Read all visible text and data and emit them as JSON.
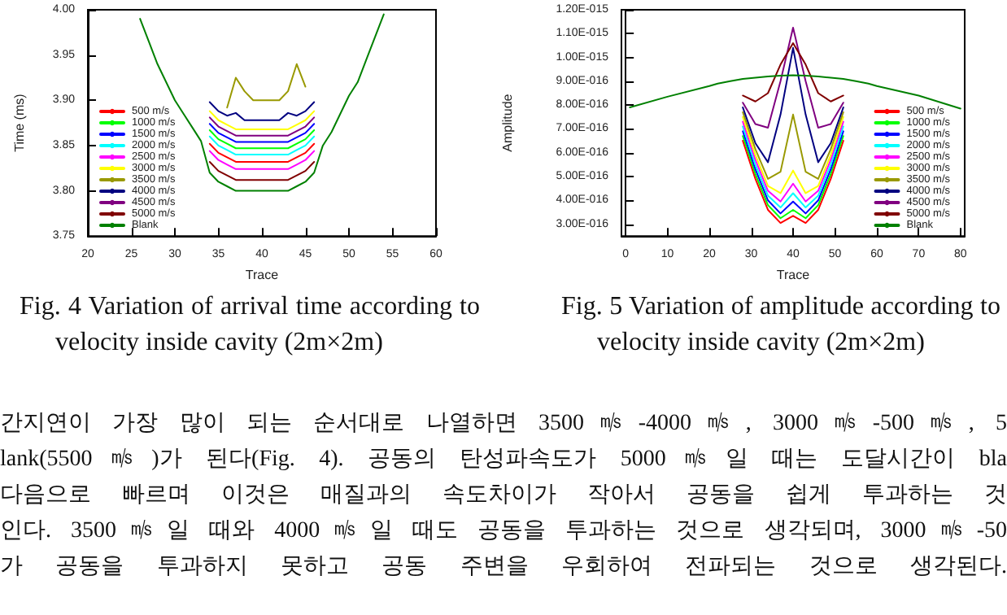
{
  "chart_data": [
    {
      "type": "line",
      "title": "Fig. 4 Variation of arrival time according to velocity inside cavity (2m×2m)",
      "xlabel": "Trace",
      "ylabel": "Time (ms)",
      "x": [
        34,
        35,
        36,
        37,
        38,
        39,
        40,
        41,
        42,
        43,
        44,
        45,
        46
      ],
      "xlim": [
        20,
        60
      ],
      "xticks": [
        20,
        25,
        30,
        35,
        40,
        45,
        50,
        55,
        60
      ],
      "ylim": [
        3.75,
        4.0
      ],
      "yticks": [
        {
          "value": 3.75,
          "label": "3.75"
        },
        {
          "value": 3.8,
          "label": "3.80"
        },
        {
          "value": 3.85,
          "label": "3.85"
        },
        {
          "value": 3.9,
          "label": "3.90"
        },
        {
          "value": 3.95,
          "label": "3.95"
        },
        {
          "value": 4.0,
          "label": "4.00"
        }
      ],
      "marker": "none",
      "legend": "bottom left",
      "grid": false,
      "series": [
        {
          "name": "500 m/s",
          "color": "#ff0000",
          "values": [
            3.852,
            3.842,
            3.837,
            3.832,
            3.832,
            3.832,
            3.832,
            3.832,
            3.832,
            3.832,
            3.837,
            3.842,
            3.852
          ]
        },
        {
          "name": "1000 m/s",
          "color": "#00ff00",
          "values": [
            3.867,
            3.857,
            3.852,
            3.847,
            3.847,
            3.847,
            3.847,
            3.847,
            3.847,
            3.847,
            3.852,
            3.857,
            3.867
          ]
        },
        {
          "name": "1500 m/s",
          "color": "#0000ff",
          "values": [
            3.874,
            3.864,
            3.859,
            3.854,
            3.854,
            3.854,
            3.854,
            3.854,
            3.854,
            3.854,
            3.859,
            3.864,
            3.874
          ]
        },
        {
          "name": "2000 m/s",
          "color": "#00ffff",
          "values": [
            3.86,
            3.85,
            3.845,
            3.84,
            3.84,
            3.84,
            3.84,
            3.84,
            3.84,
            3.84,
            3.845,
            3.85,
            3.86
          ]
        },
        {
          "name": "2500 m/s",
          "color": "#ff00ff",
          "values": [
            3.844,
            3.834,
            3.829,
            3.824,
            3.824,
            3.824,
            3.824,
            3.824,
            3.824,
            3.824,
            3.829,
            3.834,
            3.844
          ]
        },
        {
          "name": "3000 m/s",
          "color": "#ffff00",
          "values": [
            3.888,
            3.878,
            3.873,
            3.868,
            3.868,
            3.868,
            3.868,
            3.868,
            3.868,
            3.868,
            3.873,
            3.878,
            3.888
          ]
        },
        {
          "name": "3500 m/s",
          "color": "#999900",
          "x": [
            36,
            37,
            38,
            39,
            40,
            41,
            42,
            43,
            44,
            45
          ],
          "values": [
            3.892,
            3.925,
            3.91,
            3.9,
            3.9,
            3.9,
            3.9,
            3.91,
            3.94,
            3.915
          ]
        },
        {
          "name": "4000 m/s",
          "color": "#000080",
          "values": [
            3.898,
            3.888,
            3.883,
            3.886,
            3.878,
            3.878,
            3.878,
            3.878,
            3.878,
            3.886,
            3.883,
            3.888,
            3.898
          ]
        },
        {
          "name": "4500 m/s",
          "color": "#800080",
          "values": [
            3.881,
            3.871,
            3.866,
            3.861,
            3.861,
            3.861,
            3.861,
            3.861,
            3.861,
            3.861,
            3.866,
            3.871,
            3.881
          ]
        },
        {
          "name": "5000 m/s",
          "color": "#800000",
          "values": [
            3.832,
            3.822,
            3.817,
            3.812,
            3.812,
            3.812,
            3.812,
            3.812,
            3.812,
            3.812,
            3.817,
            3.822,
            3.832
          ]
        },
        {
          "name": "Blank",
          "color": "#008000",
          "x": [
            26,
            27,
            28,
            29,
            30,
            31,
            32,
            33,
            34,
            35,
            36,
            37,
            38,
            39,
            40,
            41,
            42,
            43,
            44,
            45,
            46,
            47,
            48,
            49,
            50,
            51,
            52,
            53,
            54
          ],
          "values": [
            3.99,
            3.965,
            3.94,
            3.92,
            3.9,
            3.885,
            3.87,
            3.855,
            3.82,
            3.81,
            3.805,
            3.8,
            3.8,
            3.8,
            3.8,
            3.8,
            3.8,
            3.8,
            3.805,
            3.81,
            3.82,
            3.85,
            3.865,
            3.885,
            3.905,
            3.92,
            3.945,
            3.97,
            3.995
          ]
        }
      ]
    },
    {
      "type": "line",
      "title": "Fig. 5 Variation of amplitude according to velocity inside cavity (2m×2m)",
      "xlabel": "Trace",
      "ylabel": "Amplitude",
      "x": [
        28,
        31,
        34,
        37,
        40,
        43,
        46,
        49,
        52
      ],
      "xlim": [
        -1,
        81
      ],
      "xticks": [
        0,
        10,
        20,
        30,
        40,
        50,
        60,
        70,
        80
      ],
      "ylim": [
        2.5e-16,
        1.2e-15
      ],
      "yticks": [
        {
          "value": 3e-16,
          "label": "3.00E-016"
        },
        {
          "value": 4e-16,
          "label": "4.00E-016"
        },
        {
          "value": 5e-16,
          "label": "5.00E-016"
        },
        {
          "value": 6e-16,
          "label": "6.00E-016"
        },
        {
          "value": 7e-16,
          "label": "7.00E-016"
        },
        {
          "value": 8e-16,
          "label": "8.00E-016"
        },
        {
          "value": 9e-16,
          "label": "9.00E-016"
        },
        {
          "value": 1e-15,
          "label": "1.00E-015"
        },
        {
          "value": 1.1e-15,
          "label": "1.10E-015"
        },
        {
          "value": 1.2e-15,
          "label": "1.20E-015"
        }
      ],
      "marker": "none",
      "legend": "bottom right",
      "grid": false,
      "series": [
        {
          "name": "500 m/s",
          "color": "#ff0000",
          "values": [
            6.5e-16,
            4.9e-16,
            3.6e-16,
            3.05e-16,
            3.35e-16,
            3.05e-16,
            3.6e-16,
            4.9e-16,
            6.5e-16
          ]
        },
        {
          "name": "1000 m/s",
          "color": "#00ff00",
          "values": [
            6.7e-16,
            5.1e-16,
            3.8e-16,
            3.25e-16,
            3.6e-16,
            3.25e-16,
            3.8e-16,
            5.1e-16,
            6.7e-16
          ]
        },
        {
          "name": "1500 m/s",
          "color": "#0000ff",
          "values": [
            6.9e-16,
            5.3e-16,
            4e-16,
            3.45e-16,
            3.95e-16,
            3.45e-16,
            4e-16,
            5.3e-16,
            6.9e-16
          ]
        },
        {
          "name": "2000 m/s",
          "color": "#00ffff",
          "values": [
            7.1e-16,
            5.5e-16,
            4.2e-16,
            3.7e-16,
            4.3e-16,
            3.7e-16,
            4.2e-16,
            5.5e-16,
            7.1e-16
          ]
        },
        {
          "name": "2500 m/s",
          "color": "#ff00ff",
          "values": [
            7.3e-16,
            5.7e-16,
            4.4e-16,
            3.95e-16,
            4.7e-16,
            3.95e-16,
            4.4e-16,
            5.7e-16,
            7.3e-16
          ]
        },
        {
          "name": "3000 m/s",
          "color": "#ffff00",
          "values": [
            7.5e-16,
            5.9e-16,
            4.6e-16,
            4.3e-16,
            5.25e-16,
            4.3e-16,
            4.6e-16,
            5.9e-16,
            7.5e-16
          ]
        },
        {
          "name": "3500 m/s",
          "color": "#999900",
          "values": [
            7.7e-16,
            6.15e-16,
            4.9e-16,
            5.2e-16,
            7.6e-16,
            5.2e-16,
            4.9e-16,
            6.15e-16,
            7.7e-16
          ]
        },
        {
          "name": "4000 m/s",
          "color": "#000080",
          "values": [
            7.9e-16,
            6.4e-16,
            5.6e-16,
            7.6e-16,
            1.04e-15,
            7.6e-16,
            5.6e-16,
            6.4e-16,
            7.9e-16
          ]
        },
        {
          "name": "4500 m/s",
          "color": "#800080",
          "values": [
            8.1e-16,
            7.2e-16,
            7.05e-16,
            9e-16,
            1.125e-15,
            9e-16,
            7.05e-16,
            7.2e-16,
            8.1e-16
          ]
        },
        {
          "name": "5000 m/s",
          "color": "#800000",
          "values": [
            8.4e-16,
            8.15e-16,
            8.5e-16,
            9.7e-16,
            1.06e-15,
            9.7e-16,
            8.5e-16,
            8.15e-16,
            8.4e-16
          ]
        },
        {
          "name": "Blank",
          "color": "#008000",
          "x": [
            1,
            10,
            20,
            22,
            25,
            28,
            31,
            34,
            37,
            40,
            43,
            46,
            49,
            52,
            55,
            58,
            60,
            70,
            80
          ],
          "values": [
            7.9e-16,
            8.35e-16,
            8.8e-16,
            8.9e-16,
            9e-16,
            9.1e-16,
            9.15e-16,
            9.2e-16,
            9.23e-16,
            9.25e-16,
            9.23e-16,
            9.2e-16,
            9.15e-16,
            9.1e-16,
            9e-16,
            8.9e-16,
            8.8e-16,
            8.4e-16,
            7.85e-16
          ]
        }
      ]
    },
    {
      "type": "other",
      "annotations": [
        "간지연이 가장 많이 되는 순서대로 나열하면 3500㎧-4000㎧, 3000㎧-500㎧, 5",
        "lank(5500㎧)가 된다(Fig. 4). 공동의 탄성파속도가 5000㎧일 때는 도달시간이 bla",
        "다음으로 빠르며 이것은 매질과의 속도차이가 작아서 공동을 쉽게 투과하는 것",
        "인다. 3500㎧일 때와 4000㎧일 때도 공동을 투과하는 것으로 생각되며, 3000㎧-50",
        "가 공동을 투과하지 못하고 공동 주변을 우회하여 전파되는 것으로 생각된다."
      ]
    }
  ]
}
